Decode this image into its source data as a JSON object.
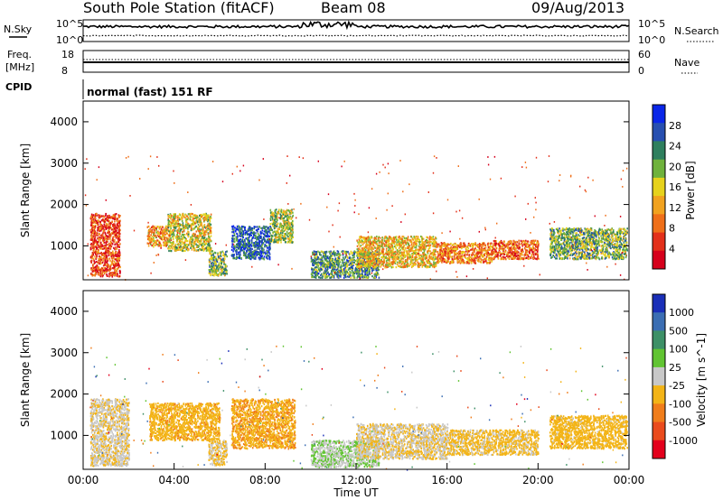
{
  "header": {
    "station": "South Pole Station (fitACF)",
    "beam": "Beam 08",
    "date": "09/Aug/2013"
  },
  "top_panels": {
    "nsky_label": "N.Sky",
    "nsky_ticks": [
      "10^5",
      "10^0"
    ],
    "nsearch_label": "N.Search",
    "right_ticks_top": [
      "10^5",
      "10^0"
    ],
    "freq_label": "Freq.",
    "freq_unit": "[MHz]",
    "freq_ticks": [
      "18",
      "8"
    ],
    "nave_label": "Nave",
    "nave_ticks": [
      "60",
      "0"
    ],
    "cpid_label": "CPID",
    "cpid_text": "normal (fast) 151 RF"
  },
  "chart_data": [
    {
      "type": "heatmap",
      "name": "power-panel",
      "ylabel": "Slant Range [km]",
      "xlabel": "",
      "ylim": [
        180,
        4500
      ],
      "yticks": [
        "1000",
        "2000",
        "3000",
        "4000"
      ],
      "colorbar_label": "Power [dB]",
      "colorbar_ticks": [
        "28",
        "24",
        "20",
        "16",
        "12",
        "8",
        "4"
      ],
      "colorbar_colors": [
        "#0a26e8",
        "#274fb0",
        "#2f7f5e",
        "#6fb23c",
        "#e6d21c",
        "#f1a21f",
        "#ef6f19",
        "#e3301a",
        "#d6001c"
      ],
      "blobs": [
        {
          "t0": 0.3,
          "t1": 1.6,
          "r0": 280,
          "r1": 1800,
          "v": 6
        },
        {
          "t0": 2.8,
          "t1": 3.7,
          "r0": 1000,
          "r1": 1500,
          "v": 12
        },
        {
          "t0": 3.7,
          "t1": 5.6,
          "r0": 900,
          "r1": 1800,
          "v": 16
        },
        {
          "t0": 5.5,
          "t1": 6.3,
          "r0": 300,
          "r1": 900,
          "v": 20
        },
        {
          "t0": 6.5,
          "t1": 8.2,
          "r0": 700,
          "r1": 1500,
          "v": 26
        },
        {
          "t0": 8.2,
          "t1": 9.2,
          "r0": 1100,
          "r1": 1900,
          "v": 18
        },
        {
          "t0": 10.0,
          "t1": 13.0,
          "r0": 250,
          "r1": 900,
          "v": 22
        },
        {
          "t0": 12.0,
          "t1": 15.5,
          "r0": 500,
          "r1": 1250,
          "v": 14
        },
        {
          "t0": 15.5,
          "t1": 18.0,
          "r0": 600,
          "r1": 1100,
          "v": 10
        },
        {
          "t0": 18.0,
          "t1": 20.0,
          "r0": 700,
          "r1": 1150,
          "v": 8
        },
        {
          "t0": 20.5,
          "t1": 23.9,
          "r0": 700,
          "r1": 1450,
          "v": 20
        }
      ]
    },
    {
      "type": "heatmap",
      "name": "velocity-panel",
      "ylabel": "Slant Range [km]",
      "xlabel": "Time UT",
      "ylim": [
        180,
        4500
      ],
      "yticks": [
        "1000",
        "2000",
        "3000",
        "4000"
      ],
      "xticks": [
        "00:00",
        "04:00",
        "08:00",
        "12:00",
        "16:00",
        "20:00",
        "00:00"
      ],
      "colorbar_label": "Velocity [m s^-1]",
      "colorbar_ticks": [
        "1000",
        "500",
        "100",
        "25",
        "-25",
        "-100",
        "-500",
        "-1000"
      ],
      "colorbar_colors": [
        "#1a2fb8",
        "#3b6eb3",
        "#3d9067",
        "#61c432",
        "#c8c8c8",
        "#f3b417",
        "#f07d1b",
        "#ea4b1d",
        "#e3001c"
      ],
      "blobs": [
        {
          "t0": 0.3,
          "t1": 2.0,
          "r0": 280,
          "r1": 1900,
          "v": -100
        },
        {
          "t0": 2.9,
          "t1": 6.0,
          "r0": 900,
          "r1": 1800,
          "v": -300
        },
        {
          "t0": 5.5,
          "t1": 6.3,
          "r0": 300,
          "r1": 900,
          "v": -150
        },
        {
          "t0": 6.5,
          "t1": 9.3,
          "r0": 700,
          "r1": 1900,
          "v": -350
        },
        {
          "t0": 10.0,
          "t1": 13.0,
          "r0": 250,
          "r1": 900,
          "v": 120
        },
        {
          "t0": 12.0,
          "t1": 16.0,
          "r0": 450,
          "r1": 1300,
          "v": -120
        },
        {
          "t0": 16.0,
          "t1": 20.0,
          "r0": 550,
          "r1": 1150,
          "v": -200
        },
        {
          "t0": 20.5,
          "t1": 23.9,
          "r0": 700,
          "r1": 1500,
          "v": -250
        }
      ]
    }
  ]
}
